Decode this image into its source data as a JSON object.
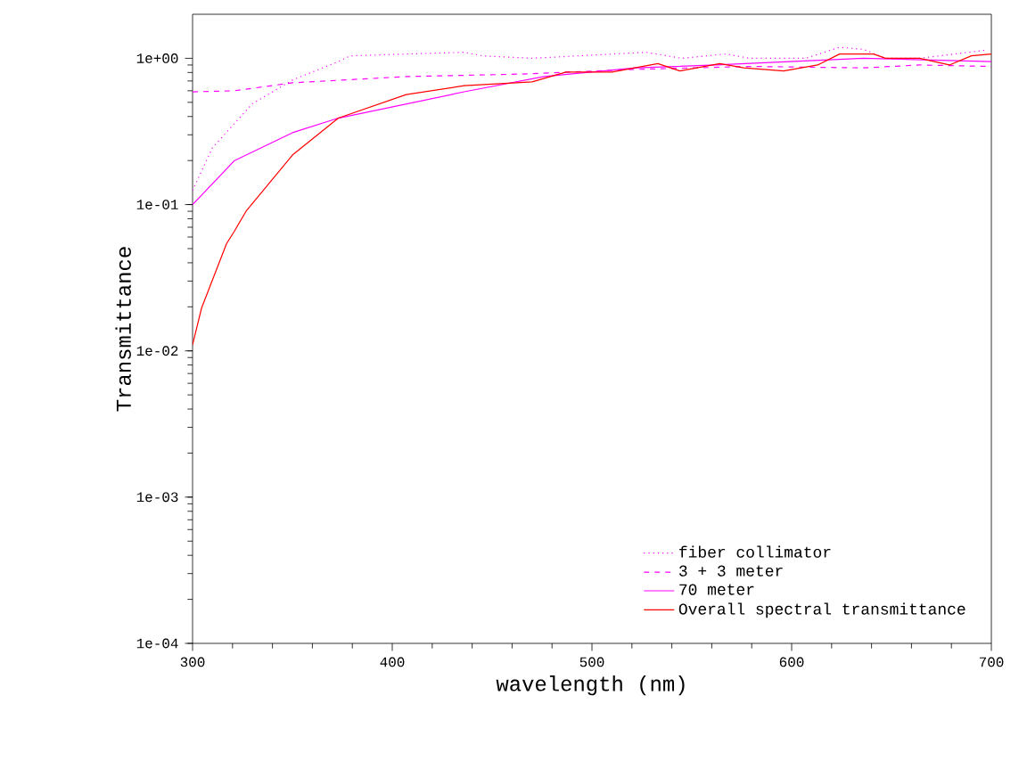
{
  "chart_data": {
    "type": "line",
    "xlabel": "wavelength (nm)",
    "ylabel": "Transmittance",
    "log": "y",
    "xlim": [
      300,
      700
    ],
    "ylim": [
      0.0001,
      2.0
    ],
    "xticks": [
      300,
      400,
      500,
      600,
      700
    ],
    "yticks": [
      {
        "value": 0.0001,
        "label": "1e-04"
      },
      {
        "value": 0.001,
        "label": "1e-03"
      },
      {
        "value": 0.01,
        "label": "1e-02"
      },
      {
        "value": 0.1,
        "label": "1e-01"
      },
      {
        "value": 1,
        "label": "1e+00"
      }
    ],
    "grid": false,
    "legend": "bottom right",
    "series": [
      {
        "name": "fiber collimator",
        "color": "#ff00ff",
        "line_style": "dotted",
        "x": [
          300,
          310,
          330,
          350,
          373,
          379,
          436,
          445,
          470,
          527,
          545,
          567,
          579,
          607,
          624,
          636,
          647,
          664,
          698
        ],
        "values": [
          0.125,
          0.245,
          0.49,
          0.71,
          0.95,
          1.04,
          1.1,
          1.04,
          1.0,
          1.1,
          1.0,
          1.07,
          1.0,
          1.0,
          1.19,
          1.15,
          1.0,
          1.0,
          1.14
        ]
      },
      {
        "name": "3 + 3 meter",
        "color": "#ff00ff",
        "line_style": "dashed",
        "x": [
          300,
          321,
          350,
          407,
          464,
          522,
          579,
          636,
          664,
          700
        ],
        "values": [
          0.59,
          0.6,
          0.68,
          0.75,
          0.78,
          0.84,
          0.88,
          0.86,
          0.9,
          0.88
        ]
      },
      {
        "name": "70 meter",
        "color": "#ff00ff",
        "line_style": "solid",
        "x": [
          300,
          321,
          350,
          373,
          436,
          476,
          522,
          562,
          636,
          700
        ],
        "values": [
          0.1,
          0.2,
          0.31,
          0.39,
          0.59,
          0.75,
          0.86,
          0.9,
          1.0,
          0.95
        ]
      },
      {
        "name": "Overall spectral transmittance",
        "color": "#ff0000",
        "line_style": "solid",
        "x": [
          300,
          304.5,
          317,
          321,
          327,
          350,
          373,
          407,
          436,
          470,
          487,
          510,
          533,
          544,
          564,
          576,
          596,
          613,
          624,
          641,
          647,
          664,
          679,
          690,
          700
        ],
        "values": [
          0.011,
          0.0196,
          0.054,
          0.066,
          0.091,
          0.218,
          0.39,
          0.565,
          0.65,
          0.69,
          0.805,
          0.805,
          0.92,
          0.82,
          0.92,
          0.86,
          0.82,
          0.9,
          1.07,
          1.07,
          1.0,
          1.0,
          0.9,
          1.04,
          1.07
        ]
      }
    ]
  }
}
